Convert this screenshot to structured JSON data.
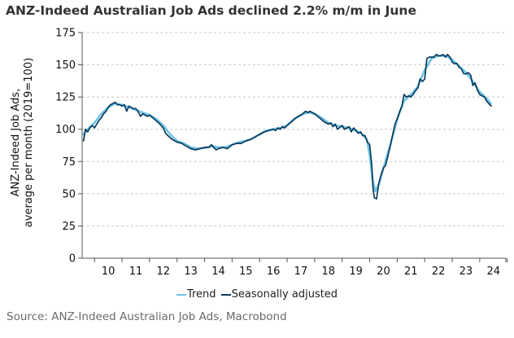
{
  "title": "ANZ-Indeed Australian Job Ads declined 2.2% m/m in June",
  "source": "Source: ANZ-Indeed Australian Job Ads, Macrobond",
  "colors": {
    "trend": "#6fc4e6",
    "seasonally_adjusted": "#0b3b5c",
    "grid": "#c8c8c8",
    "axis": "#555555"
  },
  "chart_data": {
    "type": "line",
    "title": "ANZ-Indeed Australian Job Ads declined 2.2% m/m in June",
    "ylabel_lines": [
      "ANZ-Indeed Job Ads,",
      "average per month (2019=100)"
    ],
    "xlabel": "",
    "ylim": [
      0,
      175
    ],
    "xlim": [
      2009.55,
      2024.95
    ],
    "yticks": [
      0,
      25,
      50,
      75,
      100,
      125,
      150,
      175
    ],
    "xtick_labels": [
      "10",
      "11",
      "12",
      "13",
      "14",
      "15",
      "16",
      "17",
      "18",
      "19",
      "20",
      "21",
      "22",
      "23",
      "24"
    ],
    "grid": "horizontal dashed",
    "legend_position": "bottom-center",
    "series": [
      {
        "name": "Trend",
        "points": [
          [
            2009.6,
            96
          ],
          [
            2009.75,
            100
          ],
          [
            2010.0,
            105
          ],
          [
            2010.25,
            112
          ],
          [
            2010.5,
            117
          ],
          [
            2010.75,
            120
          ],
          [
            2011.0,
            119
          ],
          [
            2011.25,
            117
          ],
          [
            2011.5,
            115
          ],
          [
            2011.75,
            113
          ],
          [
            2012.0,
            111
          ],
          [
            2012.25,
            108
          ],
          [
            2012.5,
            103
          ],
          [
            2012.75,
            96
          ],
          [
            2013.0,
            91
          ],
          [
            2013.25,
            89
          ],
          [
            2013.5,
            86
          ],
          [
            2013.75,
            85
          ],
          [
            2014.0,
            85.5
          ],
          [
            2014.25,
            87
          ],
          [
            2014.5,
            86
          ],
          [
            2014.75,
            86
          ],
          [
            2015.0,
            88
          ],
          [
            2015.25,
            90
          ],
          [
            2015.5,
            91
          ],
          [
            2015.75,
            93
          ],
          [
            2016.0,
            96
          ],
          [
            2016.25,
            99
          ],
          [
            2016.5,
            100
          ],
          [
            2016.75,
            101
          ],
          [
            2017.0,
            103
          ],
          [
            2017.25,
            108
          ],
          [
            2017.5,
            111
          ],
          [
            2017.75,
            113
          ],
          [
            2018.0,
            112
          ],
          [
            2018.25,
            109
          ],
          [
            2018.5,
            105
          ],
          [
            2018.75,
            103
          ],
          [
            2019.0,
            102
          ],
          [
            2019.25,
            101
          ],
          [
            2019.5,
            99
          ],
          [
            2019.75,
            96
          ],
          [
            2019.9,
            92
          ],
          [
            2020.0,
            80
          ],
          [
            2020.1,
            62
          ],
          [
            2020.2,
            52
          ],
          [
            2020.35,
            58
          ],
          [
            2020.5,
            70
          ],
          [
            2020.75,
            88
          ],
          [
            2021.0,
            108
          ],
          [
            2021.25,
            122
          ],
          [
            2021.5,
            127
          ],
          [
            2021.75,
            133
          ],
          [
            2022.0,
            146
          ],
          [
            2022.25,
            155
          ],
          [
            2022.5,
            157
          ],
          [
            2022.75,
            157
          ],
          [
            2023.0,
            154
          ],
          [
            2023.25,
            149
          ],
          [
            2023.5,
            144
          ],
          [
            2023.75,
            137
          ],
          [
            2024.0,
            129
          ],
          [
            2024.25,
            124
          ],
          [
            2024.4,
            120
          ]
        ]
      },
      {
        "name": "Seasonally adjusted",
        "points": [
          [
            2009.6,
            91
          ],
          [
            2009.67,
            100
          ],
          [
            2009.75,
            98
          ],
          [
            2009.83,
            101
          ],
          [
            2009.92,
            103
          ],
          [
            2010.0,
            101
          ],
          [
            2010.08,
            104
          ],
          [
            2010.17,
            107
          ],
          [
            2010.25,
            109
          ],
          [
            2010.33,
            112
          ],
          [
            2010.42,
            114
          ],
          [
            2010.5,
            117
          ],
          [
            2010.58,
            119
          ],
          [
            2010.67,
            120
          ],
          [
            2010.75,
            121
          ],
          [
            2010.83,
            119
          ],
          [
            2010.92,
            119
          ],
          [
            2011.0,
            118
          ],
          [
            2011.08,
            119
          ],
          [
            2011.17,
            114
          ],
          [
            2011.25,
            118
          ],
          [
            2011.33,
            117
          ],
          [
            2011.42,
            116
          ],
          [
            2011.5,
            116
          ],
          [
            2011.58,
            114
          ],
          [
            2011.67,
            110
          ],
          [
            2011.75,
            112
          ],
          [
            2011.83,
            111
          ],
          [
            2011.92,
            110
          ],
          [
            2012.0,
            111
          ],
          [
            2012.17,
            108
          ],
          [
            2012.33,
            105
          ],
          [
            2012.5,
            101
          ],
          [
            2012.58,
            97
          ],
          [
            2012.67,
            95
          ],
          [
            2012.83,
            92
          ],
          [
            2013.0,
            90
          ],
          [
            2013.17,
            89
          ],
          [
            2013.33,
            87
          ],
          [
            2013.5,
            85
          ],
          [
            2013.67,
            84
          ],
          [
            2013.83,
            85
          ],
          [
            2014.0,
            86
          ],
          [
            2014.17,
            86
          ],
          [
            2014.25,
            88
          ],
          [
            2014.33,
            86
          ],
          [
            2014.42,
            84
          ],
          [
            2014.5,
            85
          ],
          [
            2014.67,
            86
          ],
          [
            2014.83,
            85
          ],
          [
            2015.0,
            88
          ],
          [
            2015.17,
            89
          ],
          [
            2015.33,
            89
          ],
          [
            2015.5,
            91
          ],
          [
            2015.67,
            92
          ],
          [
            2015.83,
            94
          ],
          [
            2016.0,
            96
          ],
          [
            2016.17,
            98
          ],
          [
            2016.33,
            99
          ],
          [
            2016.5,
            100
          ],
          [
            2016.58,
            99
          ],
          [
            2016.67,
            101
          ],
          [
            2016.75,
            100
          ],
          [
            2016.83,
            102
          ],
          [
            2016.92,
            101
          ],
          [
            2017.0,
            103
          ],
          [
            2017.17,
            106
          ],
          [
            2017.33,
            109
          ],
          [
            2017.5,
            111
          ],
          [
            2017.67,
            114
          ],
          [
            2017.75,
            113
          ],
          [
            2017.83,
            114
          ],
          [
            2018.0,
            112
          ],
          [
            2018.17,
            109
          ],
          [
            2018.33,
            106
          ],
          [
            2018.5,
            104
          ],
          [
            2018.58,
            105
          ],
          [
            2018.67,
            102
          ],
          [
            2018.75,
            104
          ],
          [
            2018.83,
            100
          ],
          [
            2019.0,
            103
          ],
          [
            2019.08,
            100
          ],
          [
            2019.17,
            101
          ],
          [
            2019.25,
            102
          ],
          [
            2019.33,
            98
          ],
          [
            2019.42,
            101
          ],
          [
            2019.5,
            99
          ],
          [
            2019.58,
            97
          ],
          [
            2019.67,
            98
          ],
          [
            2019.75,
            95
          ],
          [
            2019.83,
            95
          ],
          [
            2019.92,
            90
          ],
          [
            2020.0,
            88
          ],
          [
            2020.08,
            72
          ],
          [
            2020.12,
            54
          ],
          [
            2020.17,
            47
          ],
          [
            2020.25,
            46
          ],
          [
            2020.33,
            58
          ],
          [
            2020.42,
            65
          ],
          [
            2020.5,
            70
          ],
          [
            2020.58,
            72
          ],
          [
            2020.67,
            80
          ],
          [
            2020.75,
            87
          ],
          [
            2020.83,
            95
          ],
          [
            2020.92,
            104
          ],
          [
            2021.0,
            108
          ],
          [
            2021.08,
            113
          ],
          [
            2021.17,
            118
          ],
          [
            2021.25,
            127
          ],
          [
            2021.33,
            125
          ],
          [
            2021.42,
            126
          ],
          [
            2021.5,
            125
          ],
          [
            2021.58,
            127
          ],
          [
            2021.67,
            130
          ],
          [
            2021.75,
            132
          ],
          [
            2021.83,
            139
          ],
          [
            2021.92,
            137
          ],
          [
            2022.0,
            139
          ],
          [
            2022.08,
            155
          ],
          [
            2022.17,
            156
          ],
          [
            2022.25,
            156
          ],
          [
            2022.33,
            156
          ],
          [
            2022.42,
            158
          ],
          [
            2022.5,
            157
          ],
          [
            2022.58,
            157
          ],
          [
            2022.67,
            158
          ],
          [
            2022.75,
            156
          ],
          [
            2022.83,
            158
          ],
          [
            2022.92,
            156
          ],
          [
            2023.0,
            152
          ],
          [
            2023.08,
            151
          ],
          [
            2023.17,
            151
          ],
          [
            2023.25,
            148
          ],
          [
            2023.33,
            147
          ],
          [
            2023.42,
            143
          ],
          [
            2023.5,
            143
          ],
          [
            2023.58,
            144
          ],
          [
            2023.67,
            142
          ],
          [
            2023.75,
            134
          ],
          [
            2023.83,
            136
          ],
          [
            2023.92,
            130
          ],
          [
            2024.0,
            127
          ],
          [
            2024.08,
            126
          ],
          [
            2024.17,
            125
          ],
          [
            2024.25,
            122
          ],
          [
            2024.33,
            120
          ],
          [
            2024.42,
            118
          ]
        ]
      }
    ]
  }
}
